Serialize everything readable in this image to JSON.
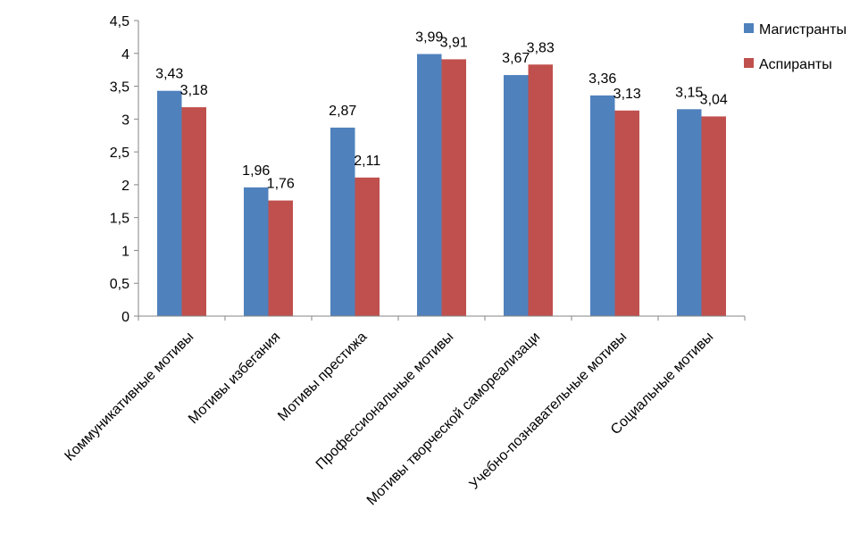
{
  "chart_data": {
    "type": "bar",
    "categories": [
      "Коммуникативные мотивы",
      "Мотивы избегания",
      "Мотивы престижа",
      "Профессиональные мотивы",
      "Мотивы творческой самореализаци",
      "Учебно-познавательные мотивы",
      "Социальные мотивы"
    ],
    "series": [
      {
        "name": "Магистранты",
        "color": "#4F81BD",
        "values": [
          3.43,
          1.96,
          2.87,
          3.99,
          3.67,
          3.36,
          3.15
        ],
        "labels": [
          "3,43",
          "1,96",
          "2,87",
          "3,99",
          "3,67",
          "3,36",
          "3,15"
        ]
      },
      {
        "name": "Аспиранты",
        "color": "#C0504D",
        "values": [
          3.18,
          1.76,
          2.11,
          3.91,
          3.83,
          3.13,
          3.04
        ],
        "labels": [
          "3,18",
          "1,76",
          "2,11",
          "3,91",
          "3,83",
          "3,13",
          "3,04"
        ]
      }
    ],
    "ylim": [
      0,
      4.5
    ],
    "yticks": [
      0,
      0.5,
      1,
      1.5,
      2,
      2.5,
      3,
      3.5,
      4,
      4.5
    ],
    "ytick_labels": [
      "0",
      "0,5",
      "1",
      "1,5",
      "2",
      "2,5",
      "3",
      "3,5",
      "4",
      "4,5"
    ],
    "grid": false,
    "legend_position": "right",
    "title": "",
    "xlabel": "",
    "ylabel": ""
  }
}
